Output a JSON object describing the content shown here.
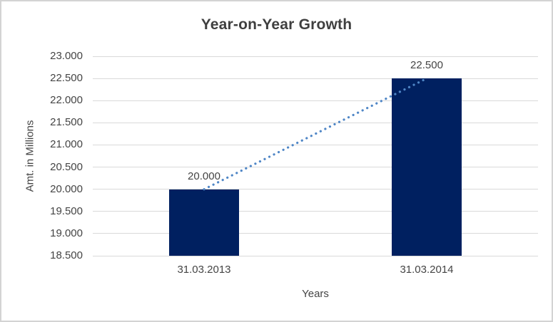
{
  "chart_data": {
    "type": "bar",
    "title": "Year-on-Year Growth",
    "xlabel": "Years",
    "ylabel": "Amt. in Millions",
    "categories": [
      "31.03.2013",
      "31.03.2014"
    ],
    "values": [
      20.0,
      22.5
    ],
    "value_labels": [
      "20.000",
      "22.500"
    ],
    "ylim": [
      18.5,
      23.0
    ],
    "ytick_step": 0.5,
    "yticks": [
      23.0,
      22.5,
      22.0,
      21.5,
      21.0,
      20.5,
      20.0,
      19.5,
      19.0,
      18.5
    ],
    "ytick_labels": [
      "23.000",
      "22.500",
      "22.000",
      "21.500",
      "21.000",
      "20.500",
      "20.000",
      "19.500",
      "19.000",
      "18.500"
    ],
    "grid": true,
    "legend": "none",
    "trendline": {
      "style": "dotted",
      "from": [
        0,
        20.0
      ],
      "to": [
        1,
        22.5
      ]
    },
    "colors": {
      "bar": "#002060",
      "trendline": "#4f86c6",
      "gridline": "#d9d9d9",
      "text": "#444444",
      "title": "#3f3f3f",
      "frame_border": "#d3d3d3",
      "background": "#ffffff"
    }
  }
}
